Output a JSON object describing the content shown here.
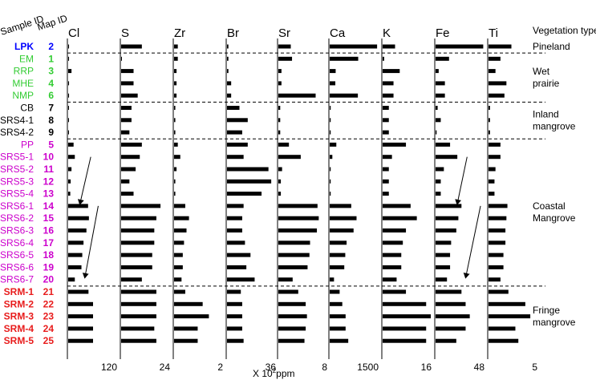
{
  "chart_data": {
    "type": "bar",
    "orientation": "horizontal",
    "layout": "multi-panel small multiples",
    "header_sample_id": "Sample ID",
    "header_map_id": "Map ID",
    "header_vegetation": "Vegetation type",
    "xlabel": "X 10",
    "xlabel_sup": "2",
    "xlabel_unit": "ppm",
    "colors": {
      "bar": "#000000",
      "pineland": "#0000ff",
      "wet_prairie": "#33cc33",
      "inland": "#000000",
      "coastal": "#cc00cc",
      "fringe": "#e81c1c"
    },
    "samples": [
      {
        "id": "LPK",
        "map": "2",
        "group": "pineland"
      },
      {
        "id": "EM",
        "map": "1",
        "group": "wet_prairie"
      },
      {
        "id": "RRP",
        "map": "3",
        "group": "wet_prairie"
      },
      {
        "id": "MHE",
        "map": "4",
        "group": "wet_prairie"
      },
      {
        "id": "NMP",
        "map": "6",
        "group": "wet_prairie"
      },
      {
        "id": "CB",
        "map": "7",
        "group": "inland"
      },
      {
        "id": "SRS4-1",
        "map": "8",
        "group": "inland"
      },
      {
        "id": "SRS4-2",
        "map": "9",
        "group": "inland"
      },
      {
        "id": "PP",
        "map": "5",
        "group": "coastal"
      },
      {
        "id": "SRS5-1",
        "map": "10",
        "group": "coastal"
      },
      {
        "id": "SRS5-2",
        "map": "11",
        "group": "coastal"
      },
      {
        "id": "SRS5-3",
        "map": "12",
        "group": "coastal"
      },
      {
        "id": "SRS5-4",
        "map": "13",
        "group": "coastal"
      },
      {
        "id": "SRS6-1",
        "map": "14",
        "group": "coastal"
      },
      {
        "id": "SRS6-2",
        "map": "15",
        "group": "coastal"
      },
      {
        "id": "SRS6-3",
        "map": "16",
        "group": "coastal"
      },
      {
        "id": "SRS6-4",
        "map": "17",
        "group": "coastal"
      },
      {
        "id": "SRS6-5",
        "map": "18",
        "group": "coastal"
      },
      {
        "id": "SRS6-6",
        "map": "19",
        "group": "coastal"
      },
      {
        "id": "SRS6-7",
        "map": "20",
        "group": "coastal"
      },
      {
        "id": "SRM-1",
        "map": "21",
        "group": "fringe"
      },
      {
        "id": "SRM-2",
        "map": "22",
        "group": "fringe"
      },
      {
        "id": "SRM-3",
        "map": "23",
        "group": "fringe"
      },
      {
        "id": "SRM-4",
        "map": "24",
        "group": "fringe"
      },
      {
        "id": "SRM-5",
        "map": "25",
        "group": "fringe"
      }
    ],
    "vegetation_groups": [
      {
        "lines": [
          "Pineland"
        ],
        "from": 0,
        "to": 0
      },
      {
        "lines": [
          "Wet",
          "prairie"
        ],
        "from": 1,
        "to": 4
      },
      {
        "lines": [
          "Inland",
          "mangrove"
        ],
        "from": 5,
        "to": 7
      },
      {
        "lines": [
          "Coastal",
          "Mangrove"
        ],
        "from": 8,
        "to": 19
      },
      {
        "lines": [
          "Fringe",
          "mangrove"
        ],
        "from": 20,
        "to": 24
      }
    ],
    "group_breaks_after": [
      0,
      4,
      7,
      19
    ],
    "panels": [
      {
        "name": "Cl",
        "max": 120,
        "max_label": "120",
        "values": [
          2,
          2,
          8,
          2,
          2,
          1,
          1,
          1,
          13,
          16,
          8,
          6,
          5,
          48,
          50,
          44,
          37,
          34,
          32,
          16,
          49,
          60,
          60,
          60,
          60
        ]
      },
      {
        "name": "S",
        "max": 24,
        "max_label": "24",
        "values": [
          10,
          0,
          6,
          6,
          8,
          5,
          5,
          4,
          10,
          9,
          7,
          4,
          6,
          19,
          17,
          16,
          16,
          15,
          15,
          10,
          17,
          17,
          17,
          16,
          17
        ]
      },
      {
        "name": "Zr",
        "max": 2,
        "max_label": "2",
        "values": [
          0.15,
          0.15,
          0.1,
          0.1,
          0.1,
          0.05,
          0.05,
          0.05,
          0.15,
          0.25,
          0.1,
          0.05,
          0.05,
          0.45,
          0.6,
          0.5,
          0.4,
          0.35,
          0.35,
          0.3,
          0.45,
          1.15,
          1.4,
          0.95,
          0.95
        ]
      },
      {
        "name": "Br",
        "max": 36,
        "max_label": "36",
        "values": [
          1,
          1,
          1,
          3,
          3,
          9,
          15,
          11,
          15,
          12,
          30,
          32,
          25,
          12,
          11,
          11,
          13,
          17,
          14,
          20,
          10,
          11,
          11,
          11,
          12
        ]
      },
      {
        "name": "Sr",
        "max": 8,
        "max_label": "8",
        "values": [
          2,
          2.2,
          0.5,
          0.5,
          6,
          0.3,
          0.3,
          0.3,
          1.7,
          3.6,
          0.6,
          0.4,
          0.4,
          6.3,
          6.5,
          6.2,
          5.1,
          5,
          4.7,
          2.3,
          3.2,
          4.4,
          4.6,
          4.4,
          4.2
        ]
      },
      {
        "name": "Ca",
        "max": 1500,
        "max_label": "1500",
        "values": [
          1430,
          860,
          180,
          170,
          850,
          30,
          30,
          30,
          200,
          80,
          30,
          30,
          30,
          650,
          810,
          720,
          510,
          470,
          440,
          130,
          300,
          380,
          480,
          480,
          560
        ]
      },
      {
        "name": "K",
        "max": 16,
        "max_label": "16",
        "values": [
          4,
          0.5,
          5.5,
          3.5,
          3.5,
          2,
          2,
          2,
          7.5,
          3,
          2,
          2,
          2,
          9,
          11,
          7.5,
          6.5,
          6,
          6,
          4.5,
          7.5,
          14,
          15.5,
          14,
          14
        ]
      },
      {
        "name": "Fe",
        "max": 48,
        "max_label": "48",
        "values": [
          46,
          13,
          3,
          9,
          9,
          2,
          5,
          1,
          14,
          21,
          8,
          5,
          5,
          25,
          22,
          20,
          15,
          14,
          14,
          11,
          25,
          29,
          33,
          29,
          20
        ]
      },
      {
        "name": "Ti",
        "max": 5,
        "max_label": "5",
        "values": [
          2.3,
          1.2,
          0.7,
          1.8,
          1.6,
          0.15,
          0.15,
          0.15,
          1.2,
          1.2,
          0.7,
          0.6,
          0.6,
          1.9,
          1.8,
          1.7,
          1.7,
          1.5,
          1.5,
          1.2,
          2,
          3.7,
          4.2,
          2.7,
          3
        ]
      }
    ],
    "arrows": [
      {
        "panel": 0,
        "from_row": 9,
        "to_row": 13,
        "from_x": 0.47,
        "to_x": 0.25
      },
      {
        "panel": 0,
        "from_row": 13,
        "to_row": 19,
        "from_x": 0.62,
        "to_x": 0.35
      },
      {
        "panel": 7,
        "from_row": 9,
        "to_row": 13,
        "from_x": 0.65,
        "to_x": 0.45
      },
      {
        "panel": 7,
        "from_row": 13,
        "to_row": 19,
        "from_x": 0.92,
        "to_x": 0.62
      }
    ]
  }
}
